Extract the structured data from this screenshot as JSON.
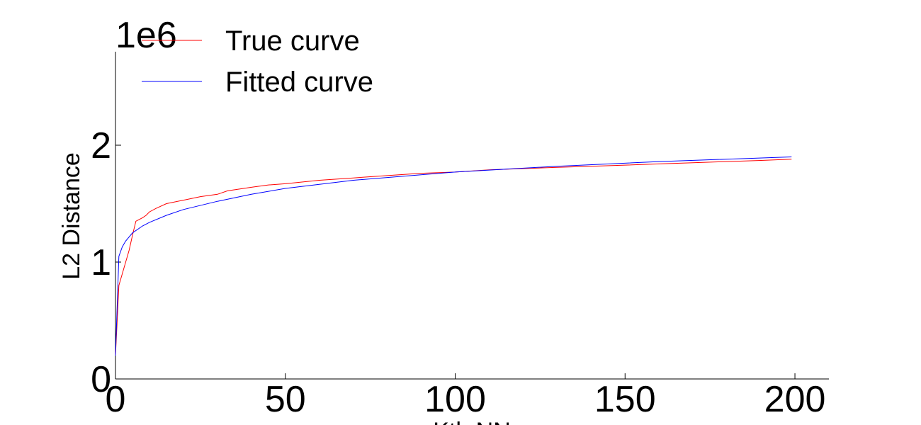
{
  "chart_data": {
    "type": "line",
    "title": "",
    "xlabel": "Kth NN",
    "ylabel": "L2 Distance",
    "y_multiplier_label": "1e6",
    "xlim": [
      0,
      210
    ],
    "ylim": [
      0,
      2800000
    ],
    "x_ticks": [
      0,
      50,
      100,
      150,
      200
    ],
    "x_tick_labels": [
      "0",
      "50",
      "100",
      "150",
      "200"
    ],
    "y_ticks": [
      0,
      1000000,
      2000000
    ],
    "y_tick_labels": [
      "0",
      "1",
      "2"
    ],
    "grid": false,
    "legend_position": "top-left",
    "series": [
      {
        "name": "True curve",
        "color": "#ff0000",
        "x": [
          0,
          1,
          2,
          3,
          4,
          5,
          6,
          8,
          9,
          10,
          12,
          15,
          20,
          25,
          30,
          33,
          40,
          45,
          50,
          60,
          70,
          80,
          90,
          100,
          110,
          120,
          130,
          140,
          150,
          160,
          170,
          180,
          190,
          199
        ],
        "y": [
          200000,
          800000,
          900000,
          1000000,
          1100000,
          1230000,
          1350000,
          1380000,
          1400000,
          1430000,
          1460000,
          1500000,
          1530000,
          1560000,
          1580000,
          1610000,
          1640000,
          1660000,
          1670000,
          1700000,
          1720000,
          1740000,
          1760000,
          1770000,
          1790000,
          1800000,
          1810000,
          1820000,
          1830000,
          1840000,
          1850000,
          1860000,
          1870000,
          1880000
        ]
      },
      {
        "name": "Fitted curve",
        "color": "#0000ff",
        "x": [
          0,
          1,
          2,
          3,
          5,
          8,
          10,
          15,
          20,
          30,
          40,
          50,
          70,
          100,
          130,
          160,
          199
        ],
        "y": [
          200000,
          1050000,
          1130000,
          1180000,
          1250000,
          1310000,
          1340000,
          1400000,
          1450000,
          1520000,
          1580000,
          1630000,
          1700000,
          1770000,
          1820000,
          1860000,
          1900000
        ]
      }
    ]
  }
}
